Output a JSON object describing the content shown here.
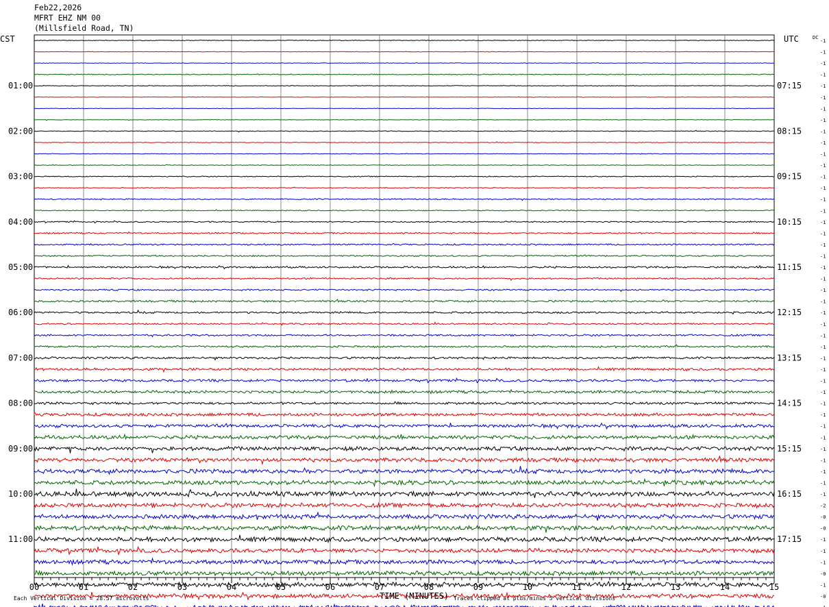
{
  "header": {
    "date": "Feb22,2026",
    "station": "MFRT EHZ NM 00",
    "location": "(Millsfield Road, TN)"
  },
  "labels": {
    "left_tz": "CST",
    "right_tz": "UTC",
    "dc": "DC",
    "xlabel": "TIME (MINUTES)",
    "scale_note": "Each Vertical Division =   28.57 microvolts",
    "clip_note": "Traces clipped at plus/minus 5 vertical divisions"
  },
  "chart_data": {
    "type": "line",
    "title": "MFRT EHZ NM 00",
    "xlabel": "TIME (MINUTES)",
    "xlim": [
      0,
      15
    ],
    "x_ticks": [
      "00",
      "01",
      "02",
      "03",
      "04",
      "05",
      "06",
      "07",
      "08",
      "09",
      "10",
      "11",
      "12",
      "13",
      "14",
      "15"
    ],
    "left_hour_labels": [
      "01:00",
      "02:00",
      "03:00",
      "04:00",
      "05:00",
      "06:00",
      "07:00",
      "08:00",
      "09:00",
      "10:00",
      "11:00"
    ],
    "right_hour_labels": [
      "07:15",
      "08:15",
      "09:15",
      "10:15",
      "11:15",
      "12:15",
      "13:15",
      "14:15",
      "15:15",
      "16:15",
      "17:15"
    ],
    "trace_colors": [
      "#000000",
      "#e00000",
      "#0000d0",
      "#006400"
    ],
    "dc_offsets": [
      "-1",
      "-1",
      "-1",
      "-1",
      "-1",
      "-1",
      "-1",
      "-1",
      "-1",
      "-1",
      "-1",
      "-1",
      "-1",
      "-1",
      "-1",
      "-1",
      "-1",
      "-1",
      "-1",
      "-1",
      "-1",
      "-1",
      "-1",
      "-1",
      "-1",
      "-1",
      "-1",
      "-1",
      "-1",
      "-1",
      "-1",
      "-1",
      "-1",
      "-1",
      "-1",
      "-1",
      "-1",
      "-1",
      "-1",
      "-1",
      "-1",
      "-2",
      "-0",
      "-0",
      "-1",
      "-1",
      "-1",
      "-0",
      "-1",
      "-0",
      "-1",
      "-1"
    ],
    "trace_noise_levels": [
      0.12,
      0.08,
      0.08,
      0.15,
      0.12,
      0.08,
      0.08,
      0.08,
      0.12,
      0.1,
      0.1,
      0.1,
      0.15,
      0.12,
      0.2,
      0.15,
      0.2,
      0.25,
      0.25,
      0.25,
      0.3,
      0.25,
      0.25,
      0.3,
      0.3,
      0.25,
      0.3,
      0.3,
      0.35,
      0.4,
      0.4,
      0.45,
      0.4,
      0.5,
      0.55,
      0.6,
      0.65,
      0.65,
      0.7,
      0.7,
      0.8,
      0.7,
      0.7,
      0.75,
      0.75,
      0.7,
      0.7,
      0.7,
      0.75,
      0.7,
      0.7,
      0.75
    ]
  }
}
